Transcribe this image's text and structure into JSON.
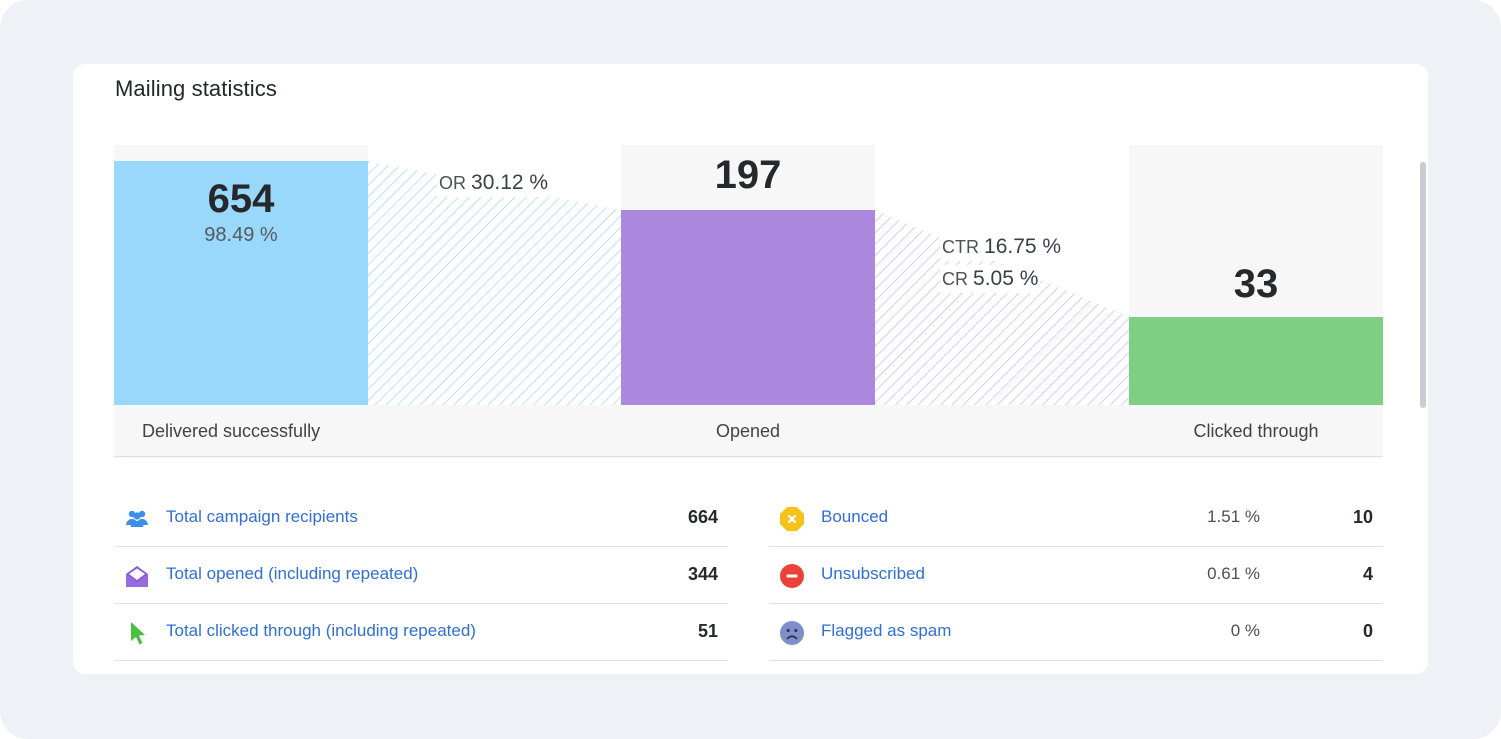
{
  "card": {
    "title": "Mailing statistics"
  },
  "funnel": {
    "stages": [
      {
        "label": "Delivered successfully",
        "value": "654",
        "percent": "98.49 %",
        "color": "#99d8fb",
        "fill": 0.94
      },
      {
        "label": "Opened",
        "value": "197",
        "percent": "",
        "color": "#ab88dd",
        "fill": 0.75
      },
      {
        "label": "Clicked through",
        "value": "33",
        "percent": "",
        "color": "#7ecf84",
        "fill": 0.34
      }
    ],
    "rates": [
      {
        "name": "OR",
        "value": "30.12 %"
      },
      {
        "name": "CTR",
        "value": "16.75 %"
      },
      {
        "name": "CR",
        "value": "5.05 %"
      }
    ]
  },
  "stats_left": [
    {
      "label": "Total campaign recipients",
      "count": "664",
      "icon": "users-icon",
      "color": "#3d8ee8"
    },
    {
      "label": "Total opened (including repeated)",
      "count": "344",
      "icon": "open-envelope-icon",
      "color": "#8b5ad6"
    },
    {
      "label": "Total clicked through (including repeated)",
      "count": "51",
      "icon": "cursor-icon",
      "color": "#4cbf3f"
    }
  ],
  "stats_right": [
    {
      "label": "Bounced",
      "percent": "1.51 %",
      "count": "10",
      "icon": "bounced-icon",
      "color": "#f3c21b"
    },
    {
      "label": "Unsubscribed",
      "percent": "0.61 %",
      "count": "4",
      "icon": "unsubscribe-icon",
      "color": "#e9433a"
    },
    {
      "label": "Flagged as spam",
      "percent": "0 %",
      "count": "0",
      "icon": "sad-face-icon",
      "color": "#7f8fc9"
    }
  ]
}
